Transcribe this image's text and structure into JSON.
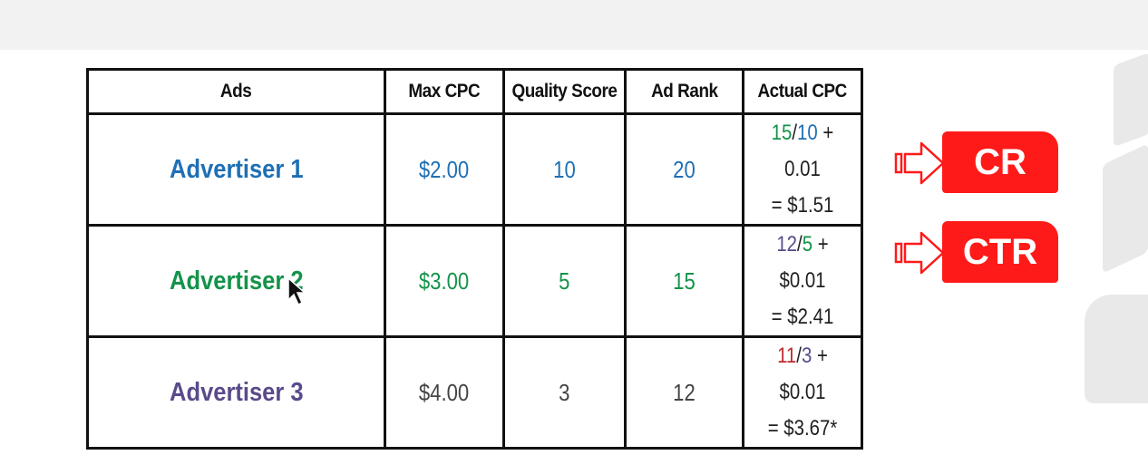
{
  "table": {
    "headers": [
      "Ads",
      "Max CPC",
      "Quality Score",
      "Ad Rank",
      "Actual CPC"
    ],
    "rows": [
      {
        "advertiser": "Advertiser 1",
        "max_cpc": "$2.00",
        "quality_score": "10",
        "ad_rank": "20",
        "actual_cpc": {
          "num": "15",
          "slash": "/",
          "den": "10",
          "rest": " + 0.01",
          "result": "= $1.51"
        },
        "color": "#1e6fb4"
      },
      {
        "advertiser": "Advertiser 2",
        "max_cpc": "$3.00",
        "quality_score": "5",
        "ad_rank": "15",
        "actual_cpc": {
          "num": "12",
          "slash": "/",
          "den": "5",
          "rest": " + $0.01",
          "result": "= $2.41"
        },
        "color": "#14934a"
      },
      {
        "advertiser": "Advertiser 3",
        "max_cpc": "$4.00",
        "quality_score": "3",
        "ad_rank": "12",
        "actual_cpc": {
          "num": "11",
          "slash": "/",
          "den": "3",
          "rest": " + $0.01",
          "result": "= $3.67*"
        },
        "color": "#5b4a8a"
      }
    ]
  },
  "badges": {
    "cr": "CR",
    "ctr": "CTR"
  },
  "colors": {
    "badge": "#ff1a1a",
    "num_green": "#14934a",
    "num_red": "#c0282d"
  },
  "icons": {
    "arrow": "right-arrow-outline-icon",
    "cursor": "mouse-pointer-icon"
  }
}
